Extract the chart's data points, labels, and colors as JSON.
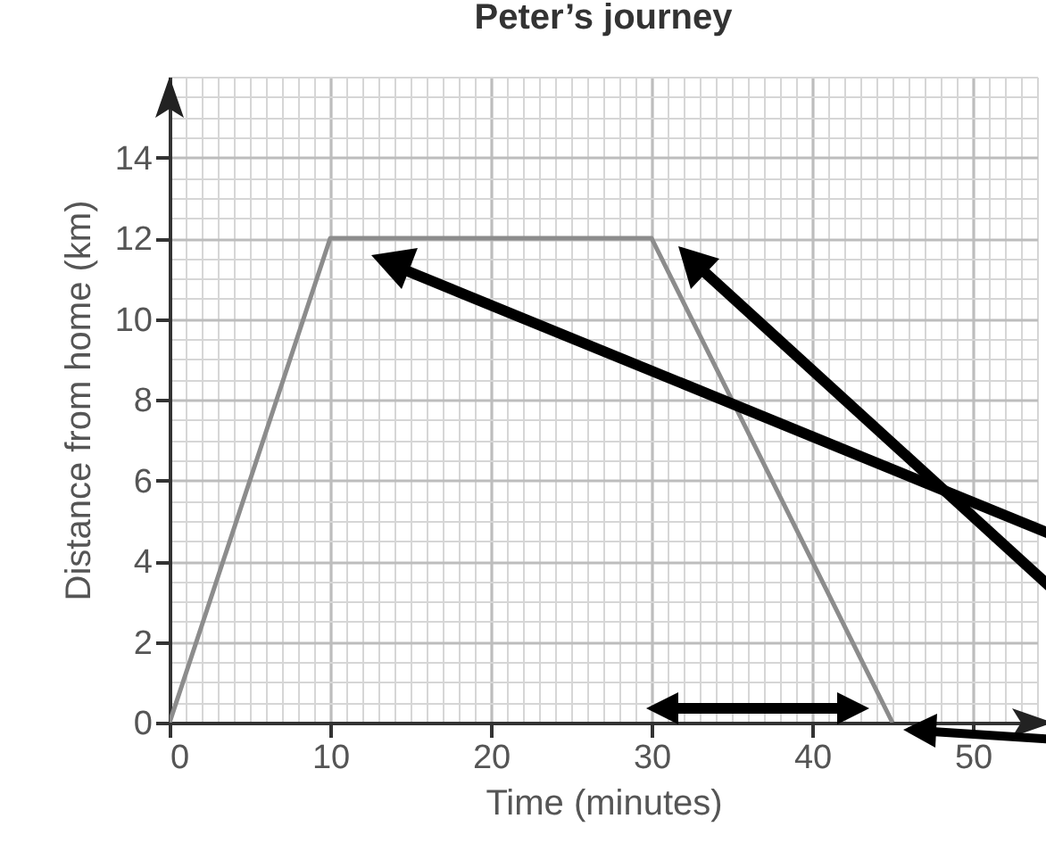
{
  "chart_data": {
    "type": "line",
    "title": "Peter’s journey",
    "xlabel": "Time (minutes)",
    "ylabel": "Distance from home (km)",
    "x": [
      0,
      10,
      30,
      45
    ],
    "series": [
      {
        "color": "#8c8c8c",
        "values": [
          0,
          12,
          12,
          0
        ]
      }
    ],
    "xlim": [
      0,
      54
    ],
    "xticks": [
      0,
      10,
      20,
      30,
      40,
      50
    ],
    "ylim": [
      0,
      16
    ],
    "yticks": [
      0,
      2,
      4,
      6,
      8,
      10,
      12,
      14
    ],
    "grid": true,
    "marker": "none",
    "line_style": "solid"
  }
}
